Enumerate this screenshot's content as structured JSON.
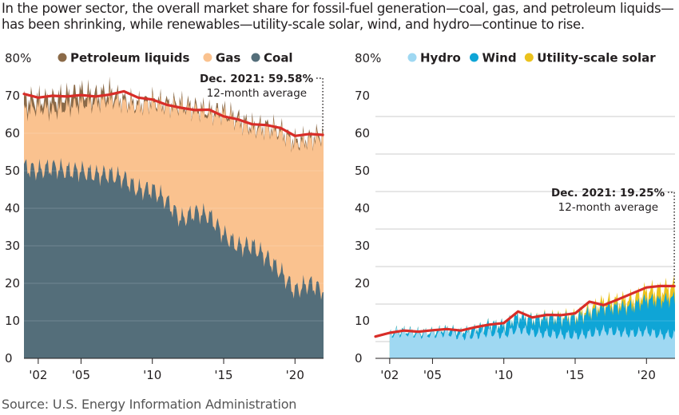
{
  "title_lines": [
    "In the power sector, the overall market share for fossil-fuel generation—coal, gas, and petroleum liquids—",
    "has been shrinking, while renewables—utility-scale solar, wind, and hydro—continue to rise."
  ],
  "source": "Source: U.S. Energy Information Administration",
  "colors": {
    "coal": "#546e7a",
    "gas": "#fac28f",
    "petroleum": "#8b6a48",
    "hydro": "#9fd8f2",
    "wind": "#0fa5d6",
    "solar": "#ebc21d",
    "average": "#d82d28",
    "grid": "#bdbdbd"
  },
  "chart_data": [
    {
      "type": "area",
      "stacked": true,
      "y_tick_labels": [
        "80%",
        "70",
        "60",
        "50",
        "40",
        "30",
        "20",
        "10",
        "0"
      ],
      "y_ticks": [
        80,
        70,
        60,
        50,
        40,
        30,
        20,
        10,
        0
      ],
      "ylim": [
        0,
        80
      ],
      "x_tick_labels": [
        "'02",
        "'05",
        "'10",
        "'15",
        "'20"
      ],
      "x_ticks": [
        2002,
        2005,
        2010,
        2015,
        2020
      ],
      "xlim": [
        2001.0,
        2022.0
      ],
      "grid": true,
      "legend_position": "top",
      "legend": [
        "Petroleum liquids",
        "Gas",
        "Coal"
      ],
      "series": [
        {
          "name": "Coal",
          "x": [
            2001,
            2002,
            2003,
            2004,
            2005,
            2006,
            2007,
            2008,
            2009,
            2010,
            2011,
            2012,
            2013,
            2014,
            2015,
            2016,
            2017,
            2018,
            2019,
            2020,
            2021,
            2022
          ],
          "values": [
            51,
            50,
            51,
            50,
            50,
            49,
            49,
            48,
            45,
            45,
            42,
            37,
            39,
            38,
            33,
            30,
            30,
            27,
            23,
            18,
            20,
            18
          ]
        },
        {
          "name": "Gas",
          "x": [
            2001,
            2002,
            2003,
            2004,
            2005,
            2006,
            2007,
            2008,
            2009,
            2010,
            2011,
            2012,
            2013,
            2014,
            2015,
            2016,
            2017,
            2018,
            2019,
            2020,
            2021,
            2022
          ],
          "values": [
            15,
            17,
            15,
            17,
            18,
            19,
            20,
            20,
            22,
            23,
            25,
            30,
            27,
            27,
            32,
            33,
            31,
            34,
            37,
            39,
            38,
            41
          ]
        },
        {
          "name": "Petroleum liquids",
          "x": [
            2001,
            2002,
            2003,
            2004,
            2005,
            2006,
            2007,
            2008,
            2009,
            2010,
            2011,
            2012,
            2013,
            2014,
            2015,
            2016,
            2017,
            2018,
            2019,
            2020,
            2021,
            2022
          ],
          "values": [
            3,
            2,
            3,
            3,
            3,
            2,
            2,
            1,
            1,
            1,
            1,
            1,
            1,
            1,
            1,
            1,
            1,
            1,
            1,
            1,
            1,
            1
          ]
        }
      ],
      "average": {
        "name": "12-month average",
        "x": [
          2001,
          2002,
          2003,
          2004,
          2005,
          2006,
          2007,
          2008,
          2009,
          2010,
          2011,
          2012,
          2013,
          2014,
          2015,
          2016,
          2017,
          2018,
          2019,
          2020,
          2021,
          2021.95
        ],
        "values": [
          70.5,
          69.5,
          70.0,
          69.8,
          70.2,
          69.8,
          70.3,
          71.2,
          69.5,
          69.0,
          67.6,
          66.8,
          66.2,
          66.3,
          64.5,
          63.7,
          62.4,
          62.2,
          61.4,
          59.3,
          59.8,
          59.58
        ]
      },
      "annotation": {
        "value_label": "Dec. 2021: 59.58%",
        "sub_label": "12-month average",
        "x": 2021.95,
        "y": 59.58
      }
    },
    {
      "type": "area",
      "stacked": true,
      "y_tick_labels": [
        "80%",
        "70",
        "60",
        "50",
        "40",
        "30",
        "20",
        "10",
        "0"
      ],
      "y_ticks": [
        80,
        70,
        60,
        50,
        40,
        30,
        20,
        10,
        0
      ],
      "ylim": [
        0,
        80
      ],
      "x_tick_labels": [
        "'02",
        "'05",
        "'10",
        "'15",
        "'20"
      ],
      "x_ticks": [
        2002,
        2005,
        2010,
        2015,
        2020
      ],
      "xlim": [
        2001.0,
        2022.0
      ],
      "grid": true,
      "legend_position": "top",
      "legend": [
        "Hydro",
        "Wind",
        "Utility-scale solar"
      ],
      "series": [
        {
          "name": "Hydro",
          "x": [
            2002,
            2003,
            2004,
            2005,
            2006,
            2007,
            2008,
            2009,
            2010,
            2011,
            2012,
            2013,
            2014,
            2015,
            2016,
            2017,
            2018,
            2019,
            2020,
            2021,
            2022
          ],
          "values": [
            6.5,
            7.0,
            6.5,
            6.5,
            7.0,
            6.0,
            6.2,
            7.0,
            6.3,
            8.0,
            6.8,
            6.6,
            6.3,
            6.1,
            6.5,
            7.4,
            7.0,
            6.6,
            7.2,
            6.2,
            6.3
          ]
        },
        {
          "name": "Wind",
          "x": [
            2002,
            2003,
            2004,
            2005,
            2006,
            2007,
            2008,
            2009,
            2010,
            2011,
            2012,
            2013,
            2014,
            2015,
            2016,
            2017,
            2018,
            2019,
            2020,
            2021,
            2022
          ],
          "values": [
            0.4,
            0.4,
            0.4,
            0.5,
            0.8,
            1.0,
            1.5,
            2.0,
            2.5,
            3.2,
            3.6,
            4.2,
            4.4,
            4.7,
            5.6,
            6.3,
            6.6,
            7.3,
            8.4,
            9.2,
            9.8
          ]
        },
        {
          "name": "Utility-scale solar",
          "x": [
            2002,
            2003,
            2004,
            2005,
            2006,
            2007,
            2008,
            2009,
            2010,
            2011,
            2012,
            2013,
            2014,
            2015,
            2016,
            2017,
            2018,
            2019,
            2020,
            2021,
            2022
          ],
          "values": [
            0,
            0,
            0,
            0,
            0,
            0,
            0,
            0,
            0,
            0,
            0.1,
            0.3,
            0.4,
            0.6,
            0.9,
            1.3,
            1.6,
            1.8,
            2.2,
            2.8,
            3.0
          ]
        }
      ],
      "average": {
        "name": "12-month average",
        "x": [
          2001,
          2002,
          2003,
          2004,
          2005,
          2006,
          2007,
          2008,
          2009,
          2010,
          2011,
          2012,
          2013,
          2014,
          2015,
          2016,
          2017,
          2018,
          2019,
          2020,
          2021,
          2021.95
        ],
        "values": [
          5.8,
          6.8,
          7.4,
          7.1,
          7.5,
          7.8,
          7.4,
          8.3,
          9.0,
          9.4,
          12.5,
          10.9,
          11.6,
          11.5,
          12.0,
          15.1,
          14.2,
          15.7,
          17.3,
          18.9,
          19.3,
          19.25
        ]
      },
      "annotation": {
        "value_label": "Dec. 2021: 19.25%",
        "sub_label": "12-month average",
        "x": 2021.95,
        "y": 19.25
      }
    }
  ]
}
